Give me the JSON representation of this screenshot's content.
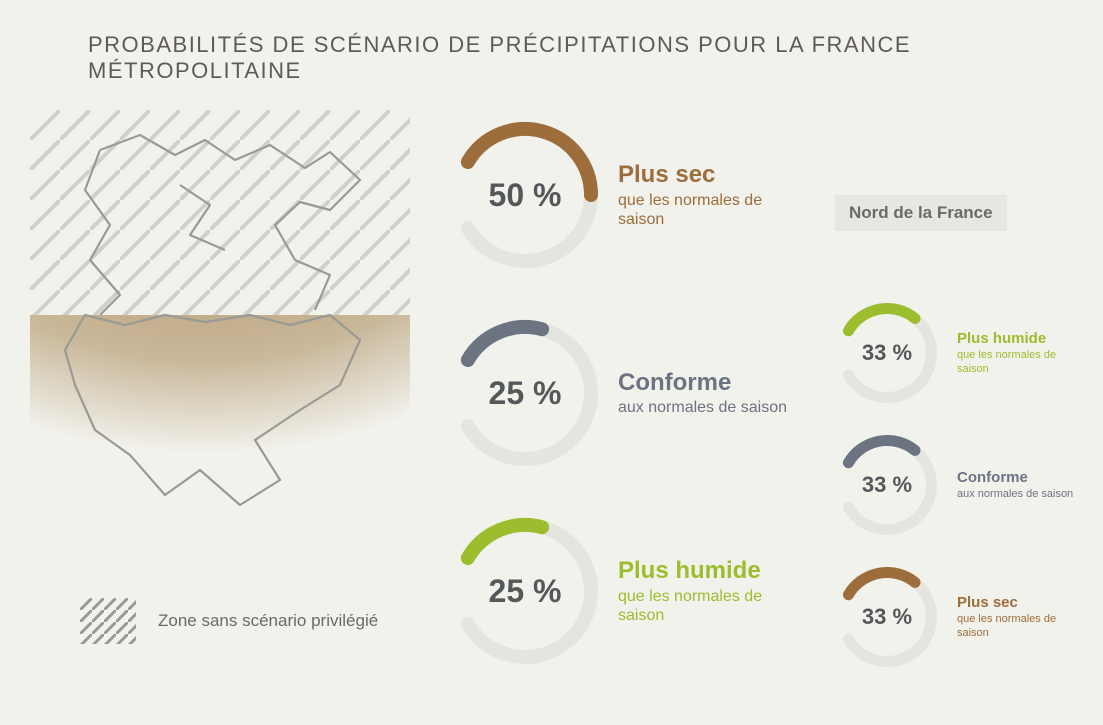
{
  "title": "PROBABILITÉS DE SCÉNARIO DE PRÉCIPITATIONS POUR LA FRANCE MÉTROPOLITAINE",
  "legend": {
    "label": "Zone sans scénario privilégié"
  },
  "north_label": "Nord de la France",
  "colors": {
    "background": "#f2f2ed",
    "title_text": "#5f5a55",
    "track": "#e5e5df",
    "dry": "#9d6d3b",
    "neutral": "#6c7381",
    "wet": "#9bbd2e",
    "map_land": "#aa8454",
    "map_line": "#9a9a94"
  },
  "main": [
    {
      "pct": 50,
      "pct_label": "50 %",
      "color": "#9d6d3b",
      "main_line": "Plus sec",
      "sub_line": "que les normales de saison",
      "main_fontsize": 24,
      "sub_fontsize": 16,
      "donut_size": 150,
      "stroke": 14,
      "value_fontsize": 32
    },
    {
      "pct": 25,
      "pct_label": "25 %",
      "color": "#6c7381",
      "main_line": "Conforme",
      "sub_line": "aux normales de saison",
      "main_fontsize": 24,
      "sub_fontsize": 16,
      "donut_size": 150,
      "stroke": 14,
      "value_fontsize": 32
    },
    {
      "pct": 25,
      "pct_label": "25 %",
      "color": "#9bbd2e",
      "main_line": "Plus humide",
      "sub_line": "que les normales de saison",
      "main_fontsize": 24,
      "sub_fontsize": 16,
      "donut_size": 150,
      "stroke": 14,
      "value_fontsize": 32
    }
  ],
  "north": [
    {
      "pct": 33,
      "pct_label": "33 %",
      "color": "#9bbd2e",
      "main_line": "Plus humide",
      "sub_line": "que les normales de saison",
      "main_fontsize": 15,
      "sub_fontsize": 11,
      "donut_size": 104,
      "stroke": 11,
      "value_fontsize": 22
    },
    {
      "pct": 33,
      "pct_label": "33 %",
      "color": "#6c7381",
      "main_line": "Conforme",
      "sub_line": "aux normales de saison",
      "main_fontsize": 15,
      "sub_fontsize": 11,
      "donut_size": 104,
      "stroke": 11,
      "value_fontsize": 22
    },
    {
      "pct": 33,
      "pct_label": "33 %",
      "color": "#9d6d3b",
      "main_line": "Plus sec",
      "sub_line": "que les normales de saison",
      "main_fontsize": 15,
      "sub_fontsize": 11,
      "donut_size": 104,
      "stroke": 11,
      "value_fontsize": 22
    }
  ],
  "donut_geometry": {
    "start_angle_deg": -60,
    "track_extent_deg": 300
  }
}
